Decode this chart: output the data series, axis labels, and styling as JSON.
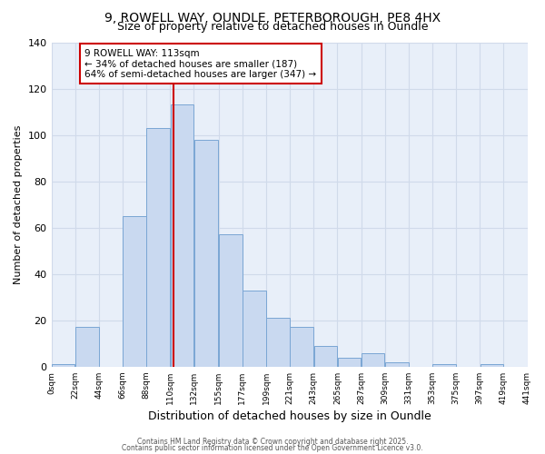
{
  "title1": "9, ROWELL WAY, OUNDLE, PETERBOROUGH, PE8 4HX",
  "title2": "Size of property relative to detached houses in Oundle",
  "xlabel": "Distribution of detached houses by size in Oundle",
  "ylabel": "Number of detached properties",
  "bin_edges": [
    0,
    22,
    44,
    66,
    88,
    110,
    132,
    155,
    177,
    199,
    221,
    243,
    265,
    287,
    309,
    331,
    353,
    375,
    397,
    419,
    441
  ],
  "bar_heights": [
    1,
    17,
    0,
    65,
    103,
    113,
    98,
    57,
    33,
    21,
    17,
    9,
    4,
    6,
    2,
    0,
    1,
    0,
    1,
    0
  ],
  "bar_color": "#c9d9f0",
  "bar_edge_color": "#7aa6d4",
  "ylim": [
    0,
    140
  ],
  "yticks": [
    0,
    20,
    40,
    60,
    80,
    100,
    120,
    140
  ],
  "vline_x": 113,
  "vline_color": "#cc0000",
  "annotation_title": "9 ROWELL WAY: 113sqm",
  "annotation_line1": "← 34% of detached houses are smaller (187)",
  "annotation_line2": "64% of semi-detached houses are larger (347) →",
  "footer1": "Contains HM Land Registry data © Crown copyright and database right 2025.",
  "footer2": "Contains public sector information licensed under the Open Government Licence v3.0.",
  "background_color": "#e8eff9",
  "grid_color": "#d0daea",
  "fig_background": "#ffffff",
  "tick_labels": [
    "0sqm",
    "22sqm",
    "44sqm",
    "66sqm",
    "88sqm",
    "110sqm",
    "132sqm",
    "155sqm",
    "177sqm",
    "199sqm",
    "221sqm",
    "243sqm",
    "265sqm",
    "287sqm",
    "309sqm",
    "331sqm",
    "353sqm",
    "375sqm",
    "397sqm",
    "419sqm",
    "441sqm"
  ]
}
